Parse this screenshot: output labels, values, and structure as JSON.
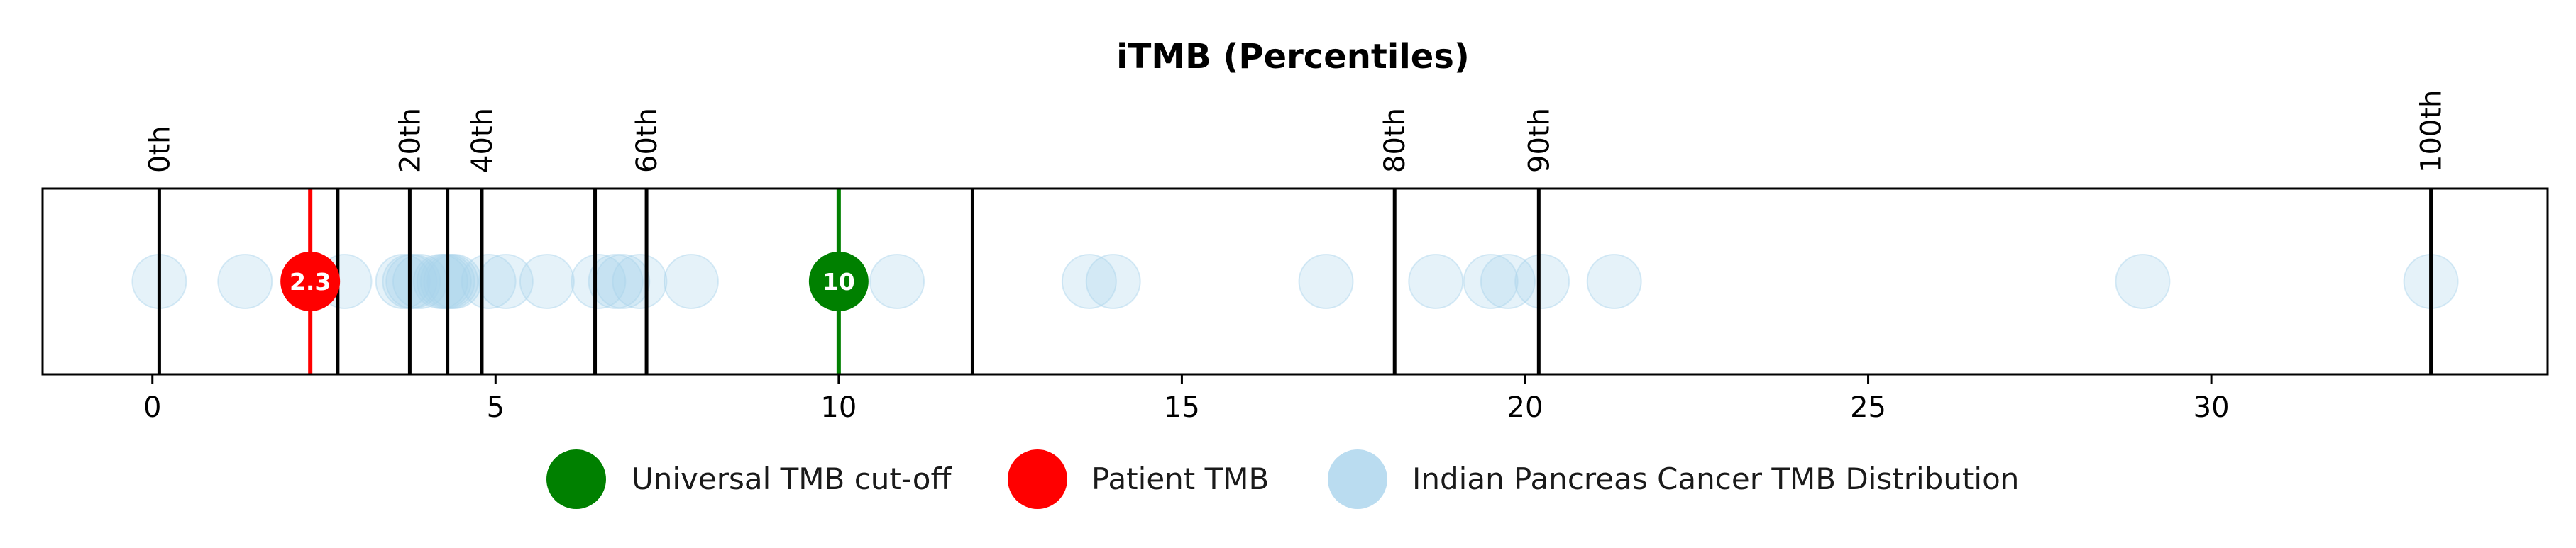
{
  "chart_data": {
    "type": "scatter",
    "title": "iTMB (Percentiles)",
    "xlabel": "",
    "ylabel": "",
    "xlim": [
      -1.6,
      34.9
    ],
    "xticks": [
      0,
      5,
      10,
      15,
      20,
      25,
      30
    ],
    "grid": false,
    "legend_position": "bottom",
    "percentile_lines": [
      {
        "x": 0.1,
        "label": "0th"
      },
      {
        "x": 2.7,
        "label": ""
      },
      {
        "x": 3.75,
        "label": "20th"
      },
      {
        "x": 4.3,
        "label": ""
      },
      {
        "x": 4.8,
        "label": "40th"
      },
      {
        "x": 6.45,
        "label": ""
      },
      {
        "x": 7.2,
        "label": "60th"
      },
      {
        "x": 11.95,
        "label": ""
      },
      {
        "x": 18.1,
        "label": "80th"
      },
      {
        "x": 20.2,
        "label": "90th"
      },
      {
        "x": 33.2,
        "label": "100th"
      }
    ],
    "series": [
      {
        "name": "Universal TMB cut-off",
        "color": "#008000",
        "values": [
          10
        ],
        "marker_label": "10"
      },
      {
        "name": "Patient TMB",
        "color": "#ff0000",
        "values": [
          2.3
        ],
        "marker_label": "2.3"
      },
      {
        "name": "Indian Pancreas Cancer TMB Distribution",
        "color": "#a9d3ec",
        "values": [
          0.1,
          1.35,
          2.8,
          3.65,
          3.75,
          3.8,
          3.9,
          4.2,
          4.25,
          4.3,
          4.35,
          4.4,
          4.9,
          5.15,
          5.75,
          6.5,
          6.75,
          6.85,
          7.1,
          7.85,
          10.85,
          13.65,
          14.0,
          17.1,
          18.7,
          19.5,
          19.75,
          20.25,
          21.3,
          29.0,
          33.2
        ]
      }
    ]
  }
}
